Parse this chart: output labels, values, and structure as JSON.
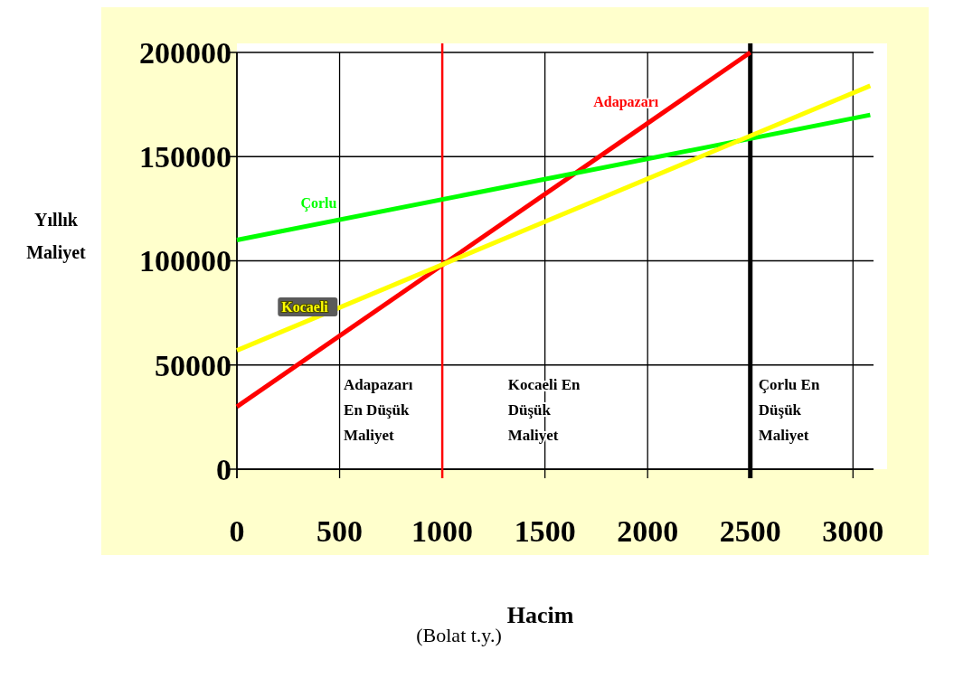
{
  "chart_data": {
    "type": "line",
    "xlabel": "Hacim",
    "ylabel": "Yıllık\nMaliyet",
    "series": [
      {
        "name": "Adapazarı",
        "color": "#ff0000",
        "x": [
          0,
          2500
        ],
        "values": [
          30000,
          200000
        ]
      },
      {
        "name": "Çorlu",
        "color": "#00ff00",
        "x": [
          0,
          3084
        ],
        "values": [
          110000,
          170000
        ]
      },
      {
        "name": "Kocaeli",
        "color": "#ffff00",
        "x": [
          0,
          3084
        ],
        "values": [
          57000,
          184000
        ]
      }
    ],
    "xlim": [
      0,
      3100
    ],
    "xticks": [
      0,
      500,
      1000,
      1500,
      2000,
      2500,
      3000
    ],
    "ylim": [
      0,
      200000
    ],
    "yticks": [
      0,
      50000,
      100000,
      150000,
      200000
    ],
    "grid": true,
    "legend": false,
    "marker": "none",
    "line_style": "solid",
    "ref_lines": [
      {
        "axis": "x",
        "value": 1000,
        "color": "#ff0000"
      },
      {
        "axis": "x",
        "value": 2500,
        "color": "#000000"
      }
    ],
    "annotations": [
      "Adapazarı\nEn Düşük\nMaliyet",
      "Kocaeli En\nDüşük\nMaliyet",
      "Çorlu En\nDüşük\nMaliyet",
      "(Bolat t.y.)"
    ]
  }
}
